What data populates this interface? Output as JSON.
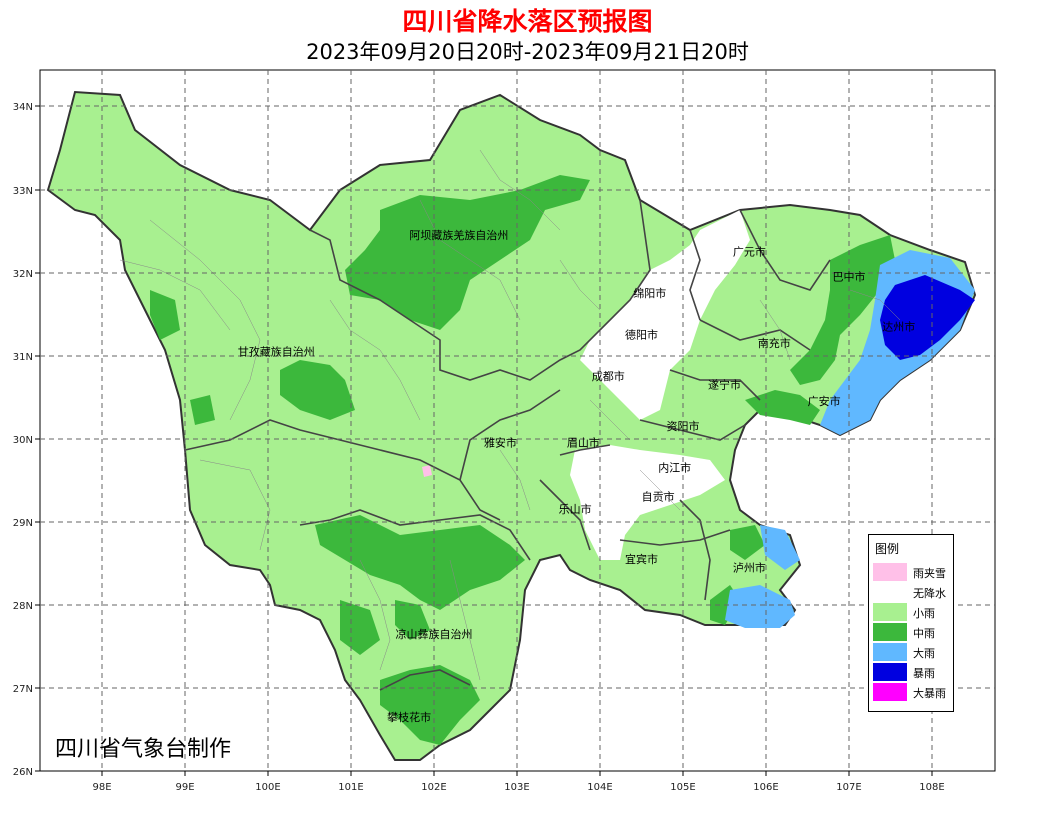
{
  "title": "四川省降水落区预报图",
  "subtitle": "2023年09月20日20时-2023年09月21日20时",
  "credit": "四川省气象台制作",
  "axes": {
    "x_ticks": [
      "98E",
      "99E",
      "100E",
      "101E",
      "102E",
      "103E",
      "104E",
      "105E",
      "106E",
      "107E",
      "108E"
    ],
    "y_ticks": [
      "34N",
      "33N",
      "32N",
      "31N",
      "30N",
      "29N",
      "28N",
      "27N",
      "26N"
    ]
  },
  "cities": [
    {
      "name": "阿坝藏族羌族自治州",
      "lon": 102.3,
      "lat": 32.4
    },
    {
      "name": "甘孜藏族自治州",
      "lon": 100.1,
      "lat": 31.0
    },
    {
      "name": "广元市",
      "lon": 105.8,
      "lat": 32.2
    },
    {
      "name": "巴中市",
      "lon": 107.0,
      "lat": 31.9
    },
    {
      "name": "绵阳市",
      "lon": 104.6,
      "lat": 31.7
    },
    {
      "name": "达州市",
      "lon": 107.6,
      "lat": 31.3
    },
    {
      "name": "德阳市",
      "lon": 104.5,
      "lat": 31.2
    },
    {
      "name": "南充市",
      "lon": 106.1,
      "lat": 31.1
    },
    {
      "name": "成都市",
      "lon": 104.1,
      "lat": 30.7
    },
    {
      "name": "遂宁市",
      "lon": 105.5,
      "lat": 30.6
    },
    {
      "name": "广安市",
      "lon": 106.7,
      "lat": 30.4
    },
    {
      "name": "资阳市",
      "lon": 105.0,
      "lat": 30.1
    },
    {
      "name": "雅安市",
      "lon": 102.8,
      "lat": 29.9
    },
    {
      "name": "眉山市",
      "lon": 103.8,
      "lat": 29.9
    },
    {
      "name": "内江市",
      "lon": 104.9,
      "lat": 29.6
    },
    {
      "name": "自贡市",
      "lon": 104.7,
      "lat": 29.25
    },
    {
      "name": "乐山市",
      "lon": 103.7,
      "lat": 29.1
    },
    {
      "name": "宜宾市",
      "lon": 104.5,
      "lat": 28.5
    },
    {
      "name": "泸州市",
      "lon": 105.8,
      "lat": 28.4
    },
    {
      "name": "凉山彝族自治州",
      "lon": 102.0,
      "lat": 27.6
    },
    {
      "name": "攀枝花市",
      "lon": 101.7,
      "lat": 26.6
    }
  ],
  "legend": {
    "title": "图例",
    "items": [
      {
        "label": "雨夹雪",
        "color": "#ffc0e8"
      },
      {
        "label": "无降水",
        "color": "#ffffff"
      },
      {
        "label": "小雨",
        "color": "#a8f090"
      },
      {
        "label": "中雨",
        "color": "#3cb83c"
      },
      {
        "label": "大雨",
        "color": "#60b8ff"
      },
      {
        "label": "暴雨",
        "color": "#0000e0"
      },
      {
        "label": "大暴雨",
        "color": "#ff00ff"
      }
    ]
  },
  "colors": {
    "light_rain": "#a8f090",
    "moderate_rain": "#3cb83c",
    "heavy_rain": "#60b8ff",
    "rainstorm": "#0000e0",
    "no_rain": "#ffffff",
    "sleet": "#ffc0e8",
    "title_color": "#ff0000"
  }
}
